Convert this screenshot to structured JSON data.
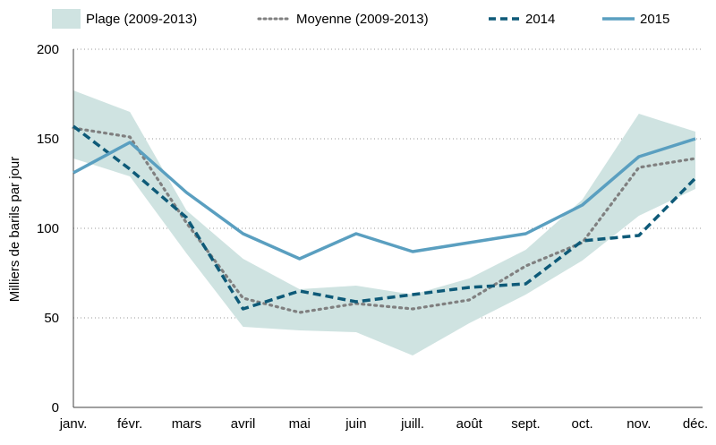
{
  "chart_data": {
    "type": "line",
    "title": "",
    "xlabel": "",
    "ylabel": "Milliers de barils par jour",
    "ylim": [
      0,
      200
    ],
    "yticks": [
      0,
      50,
      100,
      150,
      200
    ],
    "grid": "horizontal-dotted",
    "legend_position": "top",
    "categories": [
      "janv.",
      "févr.",
      "mars",
      "avril",
      "mai",
      "juin",
      "juill.",
      "août",
      "sept.",
      "oct.",
      "nov.",
      "déc."
    ],
    "band": {
      "name": "Plage (2009-2013)",
      "color": "#cfe3e1",
      "upper": [
        177,
        165,
        110,
        83,
        66,
        68,
        63,
        72,
        88,
        116,
        164,
        154
      ],
      "lower": [
        139,
        129,
        86,
        45,
        43,
        42,
        29,
        47,
        63,
        82,
        107,
        122
      ]
    },
    "series": [
      {
        "name": "Moyenne (2009-2013)",
        "style": "dotted",
        "color": "#808080",
        "values": [
          156,
          151,
          103,
          61,
          53,
          58,
          55,
          60,
          79,
          92,
          134,
          139
        ]
      },
      {
        "name": "2014",
        "style": "dashed",
        "color": "#0e5a78",
        "values": [
          157,
          133,
          106,
          55,
          65,
          59,
          63,
          67,
          69,
          93,
          96,
          128
        ]
      },
      {
        "name": "2015",
        "style": "solid",
        "color": "#5a9fc0",
        "values": [
          131,
          148,
          120,
          97,
          83,
          97,
          87,
          92,
          97,
          113,
          140,
          150
        ]
      }
    ]
  }
}
